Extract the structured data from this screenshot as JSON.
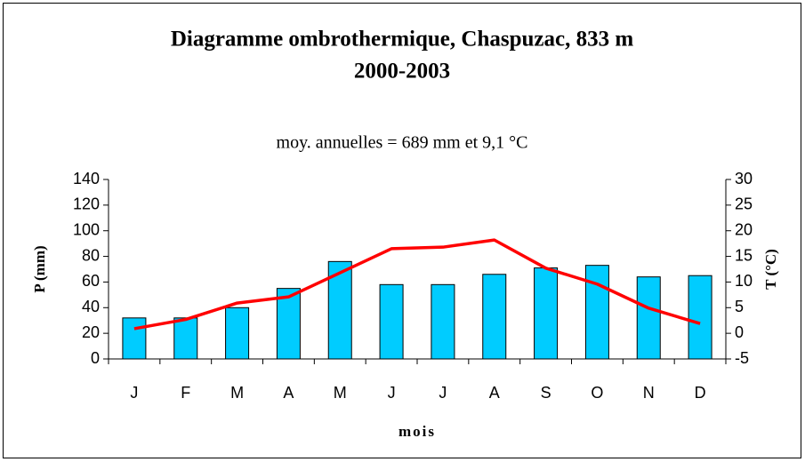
{
  "chart_data": {
    "type": "bar",
    "title": [
      "Diagramme ombrothermique, Chaspuzac, 833 m",
      "2000-2003"
    ],
    "annotation": "moy. annuelles = 689 mm et 9,1 °C",
    "x_label": "mois",
    "y_label": "P (mm)",
    "y2_label": "T (°C)",
    "categories": [
      "J",
      "F",
      "M",
      "A",
      "M",
      "J",
      "J",
      "A",
      "S",
      "O",
      "N",
      "D"
    ],
    "series": [
      {
        "name": "P (mm)",
        "type": "bar",
        "color": "#00ccff",
        "values": [
          32,
          32,
          40,
          55,
          76,
          58,
          58,
          66,
          71,
          73,
          64,
          65
        ]
      },
      {
        "name": "T (°C)",
        "type": "line",
        "axis": "y2",
        "color": "#ff0000",
        "values": [
          0.9,
          2.7,
          5.9,
          7.1,
          11.8,
          16.5,
          16.8,
          18.2,
          12.7,
          9.6,
          4.9,
          1.9
        ]
      }
    ],
    "ylim": [
      0,
      140
    ],
    "yticks": [
      0,
      20,
      40,
      60,
      80,
      100,
      120,
      140
    ],
    "y2lim": [
      -5,
      30
    ],
    "y2ticks": [
      -5,
      0,
      5,
      10,
      15,
      20,
      25,
      30
    ],
    "legend": false,
    "grid": false
  }
}
